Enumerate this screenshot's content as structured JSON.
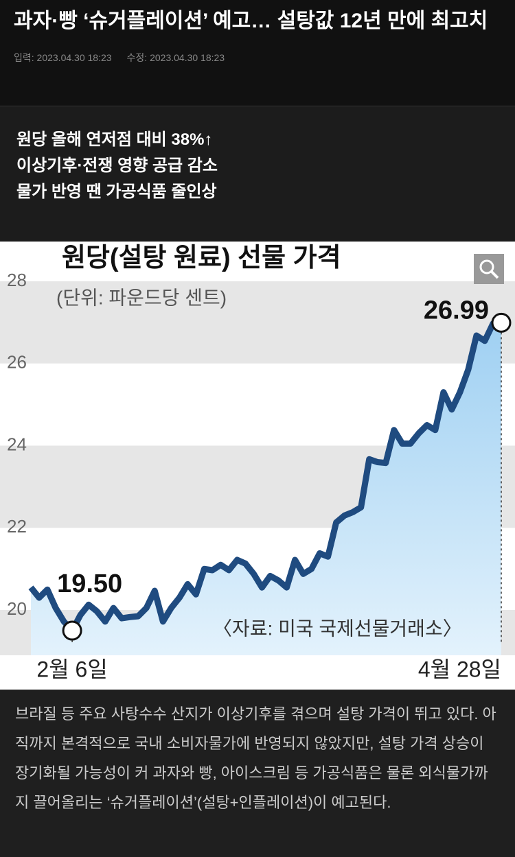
{
  "header": {
    "title": "과자·빵 ‘슈거플레이션’ 예고… 설탕값 12년 만에 최고치",
    "published": "입력: 2023.04.30 18:23",
    "modified": "수정: 2023.04.30 18:23"
  },
  "subtitles": [
    "원당 올해 연저점 대비 38%↑",
    "이상기후·전쟁 영향 공급 감소",
    "물가 반영 땐 가공식품 줄인상"
  ],
  "chart_data": {
    "type": "line",
    "title": "원당(설탕 원료) 선물 가격",
    "subtitle": "(단위: 파운드당 센트)",
    "source": "〈자료: 미국 국제선물거래소〉",
    "categories": [
      null,
      null,
      null,
      null,
      null,
      "2월 6일",
      null,
      null,
      null,
      null,
      null,
      null,
      null,
      null,
      null,
      null,
      null,
      null,
      null,
      null,
      null,
      null,
      null,
      null,
      null,
      null,
      null,
      null,
      null,
      null,
      null,
      null,
      null,
      null,
      null,
      null,
      null,
      null,
      null,
      null,
      null,
      null,
      null,
      null,
      null,
      null,
      null,
      null,
      null,
      null,
      null,
      null,
      null,
      null,
      null,
      null,
      null,
      "4월 28일"
    ],
    "values": [
      20.55,
      20.3,
      20.5,
      20.05,
      19.72,
      19.5,
      19.88,
      20.13,
      19.97,
      19.72,
      20.05,
      19.8,
      19.83,
      19.85,
      20.05,
      20.47,
      19.72,
      20.05,
      20.3,
      20.63,
      20.38,
      21.0,
      20.97,
      21.1,
      20.97,
      21.22,
      21.13,
      20.88,
      20.55,
      20.83,
      20.72,
      20.55,
      21.22,
      20.88,
      21.0,
      21.38,
      21.3,
      22.13,
      22.3,
      22.38,
      22.5,
      23.67,
      23.6,
      23.58,
      24.38,
      24.05,
      24.05,
      24.3,
      24.5,
      24.38,
      25.3,
      24.88,
      25.3,
      25.85,
      26.68,
      26.55,
      26.97,
      26.99
    ],
    "value_labels": [
      null,
      null,
      null,
      null,
      null,
      "19.50",
      null,
      null,
      null,
      null,
      null,
      null,
      null,
      null,
      null,
      null,
      null,
      null,
      null,
      null,
      null,
      null,
      null,
      null,
      null,
      null,
      null,
      null,
      null,
      null,
      null,
      null,
      null,
      null,
      null,
      null,
      null,
      null,
      null,
      null,
      null,
      null,
      null,
      null,
      null,
      null,
      null,
      null,
      null,
      null,
      null,
      null,
      null,
      null,
      null,
      null,
      null,
      "26.99"
    ],
    "color": "#1f4b80",
    "ylim": [
      18.9,
      28.9
    ],
    "yticks": [
      20,
      22,
      24,
      26,
      28
    ],
    "grid": true
  },
  "body": "브라질 등 주요 사탕수수 산지가 이상기후를 겪으며 설탕 가격이 뛰고 있다. 아직까지 본격적으로 국내 소비자물가에 반영되지 않았지만, 설탕 가격 상승이 장기화될 가능성이 커 과자와 빵, 아이스크림 등 가공식품은 물론 외식물가까지 끌어올리는 ‘슈거플레이션’(설탕+인플레이션)이 예고된다."
}
